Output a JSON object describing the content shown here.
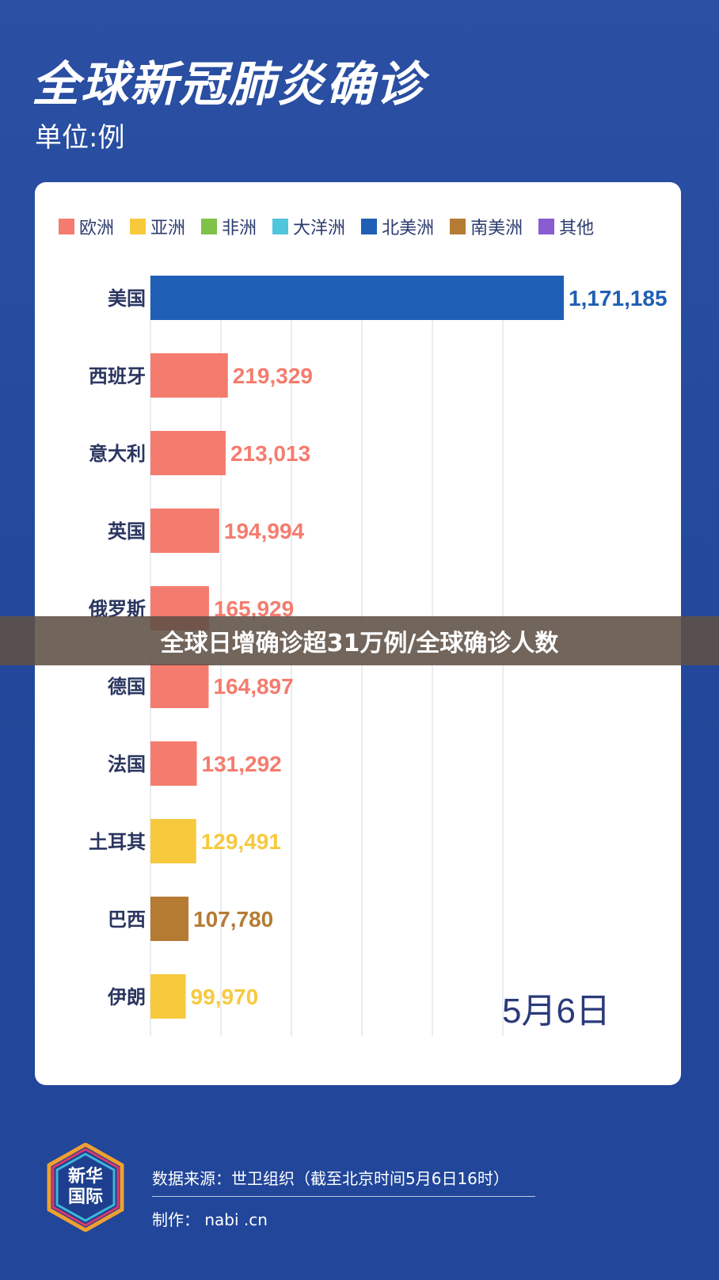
{
  "title": "全球新冠肺炎确诊",
  "unit": "单位:例",
  "banner": "全球日增确诊超31万例/全球确诊人数",
  "date": "5月6日",
  "legend": [
    {
      "label": "欧洲",
      "color": "#f47c6e"
    },
    {
      "label": "亚洲",
      "color": "#f7c93d"
    },
    {
      "label": "非洲",
      "color": "#7ec24a"
    },
    {
      "label": "大洋洲",
      "color": "#4fc6dc"
    },
    {
      "label": "北美洲",
      "color": "#1f5fb5"
    },
    {
      "label": "南美洲",
      "color": "#b57b33"
    },
    {
      "label": "其他",
      "color": "#8a5bd1"
    }
  ],
  "chart_data": {
    "type": "bar",
    "orientation": "horizontal",
    "categories": [
      "美国",
      "西班牙",
      "意大利",
      "英国",
      "俄罗斯",
      "德国",
      "法国",
      "土耳其",
      "巴西",
      "伊朗"
    ],
    "values": [
      1171185,
      219329,
      213013,
      194994,
      165929,
      164897,
      131292,
      129491,
      107780,
      99970
    ],
    "value_labels": [
      "1,171,185",
      "219,329",
      "213,013",
      "194,994",
      "165,929",
      "164,897",
      "131,292",
      "129,491",
      "107,780",
      "99,970"
    ],
    "continents": [
      "北美洲",
      "欧洲",
      "欧洲",
      "欧洲",
      "欧洲",
      "欧洲",
      "欧洲",
      "亚洲",
      "南美洲",
      "亚洲"
    ],
    "grid": true
  },
  "footer": {
    "logo_line1": "新华",
    "logo_line2": "国际",
    "source": "数据来源：世卫组织（截至北京时间5月6日16时）",
    "maker": "制作：      nabi .cn"
  }
}
